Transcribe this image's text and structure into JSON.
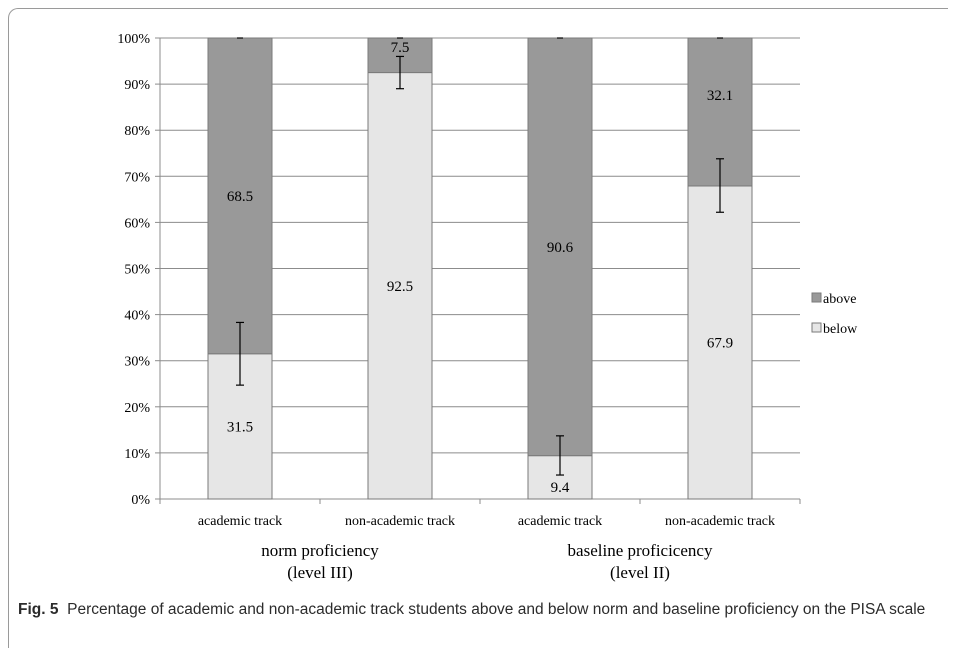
{
  "chart_data": {
    "type": "bar",
    "stacked": true,
    "categories": [
      "academic track",
      "non-academic track",
      "academic track",
      "non-academic track"
    ],
    "groups": [
      {
        "label_line1": "norm proficiency",
        "label_line2": "(level III)"
      },
      {
        "label_line1": "baseline proficicency",
        "label_line2": "(level II)"
      }
    ],
    "series": [
      {
        "name": "below",
        "values": [
          31.5,
          92.5,
          9.4,
          67.9
        ],
        "color": "#e6e6e6",
        "error_low": [
          24.7,
          89.0,
          5.2,
          62.2
        ],
        "error_high": [
          38.3,
          96.0,
          13.7,
          73.8
        ]
      },
      {
        "name": "above",
        "values": [
          68.5,
          7.5,
          90.6,
          32.1
        ],
        "color": "#999999",
        "error_low": [
          null,
          null,
          null,
          null
        ],
        "error_high": [
          null,
          null,
          null,
          null
        ]
      }
    ],
    "data_labels": {
      "below": [
        "31.5",
        "92.5",
        "9.4",
        "67.9"
      ],
      "above": [
        "68.5",
        "7.5",
        "90.6",
        "32.1"
      ]
    },
    "y_ticks": [
      "0%",
      "10%",
      "20%",
      "30%",
      "40%",
      "50%",
      "60%",
      "70%",
      "80%",
      "90%",
      "100%"
    ],
    "ylim": [
      0,
      100
    ],
    "grid": true,
    "legend_placement": "right",
    "legend": [
      {
        "name": "above",
        "color": "#999999"
      },
      {
        "name": "below",
        "color": "#e6e6e6"
      }
    ]
  },
  "caption": {
    "label": "Fig. 5",
    "text": "Percentage of academic and non-academic track students above and below norm and baseline proficiency on the PISA scale"
  }
}
